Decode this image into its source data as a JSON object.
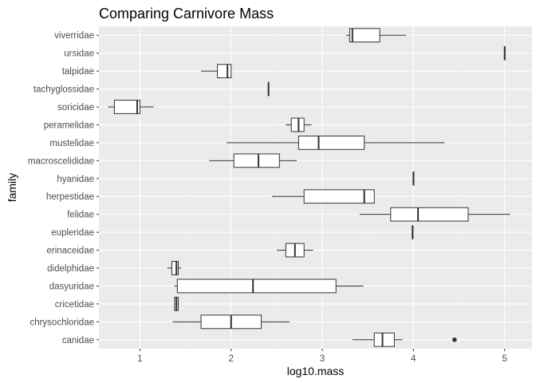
{
  "chart_data": {
    "type": "boxplot",
    "orientation": "horizontal",
    "title": "Comparing Carnivore Mass",
    "xlabel": "log10.mass",
    "ylabel": "family",
    "xlim": [
      0.55,
      5.3
    ],
    "x_ticks": [
      1,
      2,
      3,
      4,
      5
    ],
    "grid": true,
    "categories": [
      "canidae",
      "chrysochloridae",
      "cricetidae",
      "dasyuridae",
      "didelphidae",
      "erinaceidae",
      "eupleridae",
      "felidae",
      "herpestidae",
      "hyanidae",
      "macroscelididae",
      "mustelidae",
      "peramelidae",
      "soricidae",
      "tachyglossidae",
      "talpidae",
      "ursidae",
      "viverridae"
    ],
    "boxes": [
      {
        "family": "canidae",
        "min": 3.33,
        "q1": 3.57,
        "median": 3.66,
        "q3": 3.79,
        "max": 3.88,
        "outliers": [
          4.45
        ]
      },
      {
        "family": "chrysochloridae",
        "min": 1.36,
        "q1": 1.67,
        "median": 2.0,
        "q3": 2.33,
        "max": 2.64,
        "outliers": []
      },
      {
        "family": "cricetidae",
        "min": 1.38,
        "q1": 1.38,
        "median": 1.4,
        "q3": 1.42,
        "max": 1.43,
        "outliers": []
      },
      {
        "family": "dasyuridae",
        "min": 1.38,
        "q1": 1.41,
        "median": 2.24,
        "q3": 3.15,
        "max": 3.45,
        "outliers": []
      },
      {
        "family": "didelphidae",
        "min": 1.3,
        "q1": 1.35,
        "median": 1.4,
        "q3": 1.42,
        "max": 1.45,
        "outliers": []
      },
      {
        "family": "erinaceidae",
        "min": 2.5,
        "q1": 2.6,
        "median": 2.7,
        "q3": 2.8,
        "max": 2.9,
        "outliers": []
      },
      {
        "family": "eupleridae",
        "min": 3.99,
        "q1": 3.99,
        "median": 3.99,
        "q3": 3.99,
        "max": 3.99,
        "outliers": []
      },
      {
        "family": "felidae",
        "min": 3.41,
        "q1": 3.75,
        "median": 4.05,
        "q3": 4.6,
        "max": 5.06,
        "outliers": []
      },
      {
        "family": "herpestidae",
        "min": 2.45,
        "q1": 2.8,
        "median": 3.46,
        "q3": 3.57,
        "max": 3.57,
        "outliers": []
      },
      {
        "family": "hyanidae",
        "min": 4.0,
        "q1": 4.0,
        "median": 4.0,
        "q3": 4.0,
        "max": 4.0,
        "outliers": []
      },
      {
        "family": "macroscelididae",
        "min": 1.76,
        "q1": 2.03,
        "median": 2.3,
        "q3": 2.53,
        "max": 2.72,
        "outliers": []
      },
      {
        "family": "mustelidae",
        "min": 1.95,
        "q1": 2.74,
        "median": 2.96,
        "q3": 3.46,
        "max": 4.34,
        "outliers": []
      },
      {
        "family": "peramelidae",
        "min": 2.6,
        "q1": 2.66,
        "median": 2.74,
        "q3": 2.8,
        "max": 2.88,
        "outliers": []
      },
      {
        "family": "soricidae",
        "min": 0.65,
        "q1": 0.72,
        "median": 0.97,
        "q3": 1.0,
        "max": 1.15,
        "outliers": []
      },
      {
        "family": "tachyglossidae",
        "min": 2.41,
        "q1": 2.41,
        "median": 2.41,
        "q3": 2.41,
        "max": 2.41,
        "outliers": []
      },
      {
        "family": "talpidae",
        "min": 1.67,
        "q1": 1.85,
        "median": 1.96,
        "q3": 2.0,
        "max": 2.0,
        "outliers": []
      },
      {
        "family": "ursidae",
        "min": 5.0,
        "q1": 5.0,
        "median": 5.0,
        "q3": 5.0,
        "max": 5.0,
        "outliers": []
      },
      {
        "family": "viverridae",
        "min": 3.26,
        "q1": 3.3,
        "median": 3.33,
        "q3": 3.63,
        "max": 3.92,
        "outliers": []
      }
    ],
    "colors": {
      "panel_background": "#ebebeb",
      "grid_major": "#ffffff",
      "grid_minor": "#f5f5f5",
      "box_fill": "#ffffff",
      "box_stroke": "#333333",
      "outlier": "#333333"
    }
  }
}
